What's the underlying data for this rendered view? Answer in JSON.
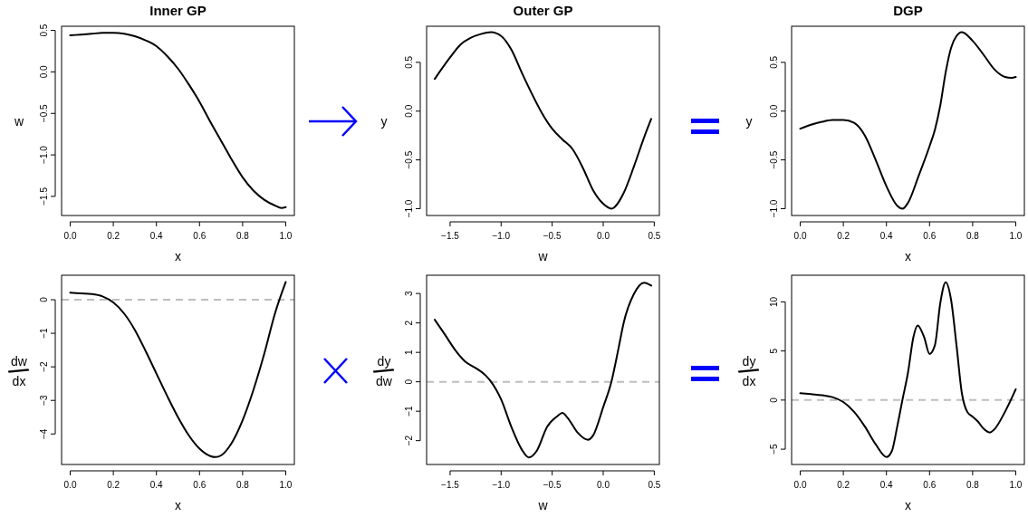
{
  "chart_data": [
    {
      "type": "line",
      "title": "Inner GP",
      "xlabel": "x",
      "ylabel": "w",
      "xlim": [
        -0.04,
        1.04
      ],
      "ylim": [
        -1.73,
        0.55
      ],
      "xticks": [
        {
          "value": 0,
          "label": "0.0"
        },
        0.2,
        0.4,
        0.6,
        0.8,
        {
          "value": 1,
          "label": "1.0"
        }
      ],
      "yticks": [
        {
          "value": -1.5,
          "label": "−1.5"
        },
        {
          "value": -1,
          "label": "−1.0"
        },
        {
          "value": -0.5,
          "label": "−0.5"
        },
        {
          "value": 0,
          "label": "0.0"
        },
        0.5
      ],
      "x": [
        0,
        0.05,
        0.1,
        0.15,
        0.2,
        0.25,
        0.3,
        0.35,
        0.4,
        0.45,
        0.5,
        0.55,
        0.6,
        0.65,
        0.7,
        0.75,
        0.8,
        0.85,
        0.9,
        0.95,
        0.98,
        1.0
      ],
      "series": [
        {
          "color": "#000000",
          "values": [
            0.44,
            0.45,
            0.46,
            0.47,
            0.47,
            0.46,
            0.43,
            0.38,
            0.31,
            0.19,
            0.04,
            -0.15,
            -0.36,
            -0.6,
            -0.83,
            -1.06,
            -1.27,
            -1.43,
            -1.54,
            -1.61,
            -1.64,
            -1.63
          ]
        }
      ]
    },
    {
      "type": "line",
      "title": "Outer GP",
      "xlabel": "w",
      "ylabel": "y",
      "xlim": [
        -1.73,
        0.55
      ],
      "ylim": [
        -1.07,
        0.87
      ],
      "xticks": [
        {
          "value": -1.5,
          "label": "−1.5"
        },
        {
          "value": -1,
          "label": "−1.0"
        },
        {
          "value": -0.5,
          "label": "−0.5"
        },
        {
          "value": 0,
          "label": "0.0"
        },
        0.5
      ],
      "yticks": [
        {
          "value": -1,
          "label": "−1.0"
        },
        {
          "value": -0.5,
          "label": "−0.5"
        },
        {
          "value": 0,
          "label": "0.0"
        },
        0.5
      ],
      "x": [
        -1.65,
        -1.5,
        -1.4,
        -1.3,
        -1.2,
        -1.1,
        -1.0,
        -0.9,
        -0.8,
        -0.7,
        -0.6,
        -0.5,
        -0.4,
        -0.3,
        -0.2,
        -0.1,
        0.0,
        0.08,
        0.2,
        0.3,
        0.4,
        0.47
      ],
      "series": [
        {
          "color": "#000000",
          "values": [
            0.33,
            0.55,
            0.68,
            0.75,
            0.79,
            0.81,
            0.77,
            0.63,
            0.4,
            0.18,
            -0.02,
            -0.18,
            -0.29,
            -0.39,
            -0.58,
            -0.81,
            -0.95,
            -1.0,
            -0.84,
            -0.57,
            -0.27,
            -0.08
          ]
        }
      ]
    },
    {
      "type": "line",
      "title": "DGP",
      "xlabel": "x",
      "ylabel": "y",
      "xlim": [
        -0.04,
        1.04
      ],
      "ylim": [
        -1.07,
        0.87
      ],
      "xticks": [
        {
          "value": 0,
          "label": "0.0"
        },
        0.2,
        0.4,
        0.6,
        0.8,
        {
          "value": 1,
          "label": "1.0"
        }
      ],
      "yticks": [
        {
          "value": -1,
          "label": "−1.0"
        },
        {
          "value": -0.5,
          "label": "−0.5"
        },
        {
          "value": 0,
          "label": "0.0"
        },
        0.5
      ],
      "x": [
        0,
        0.05,
        0.1,
        0.15,
        0.2,
        0.25,
        0.3,
        0.35,
        0.4,
        0.45,
        0.475,
        0.5,
        0.55,
        0.6,
        0.625,
        0.65,
        0.675,
        0.7,
        0.725,
        0.75,
        0.8,
        0.85,
        0.9,
        0.95,
        0.98,
        1.0
      ],
      "series": [
        {
          "color": "#000000",
          "values": [
            -0.18,
            -0.14,
            -0.11,
            -0.09,
            -0.09,
            -0.12,
            -0.25,
            -0.5,
            -0.77,
            -0.97,
            -1.0,
            -0.94,
            -0.66,
            -0.36,
            -0.19,
            0.06,
            0.4,
            0.65,
            0.77,
            0.81,
            0.72,
            0.58,
            0.43,
            0.35,
            0.34,
            0.35
          ]
        }
      ]
    },
    {
      "type": "line",
      "xlabel": "x",
      "ylabel": "dw/dx",
      "xlim": [
        -0.04,
        1.04
      ],
      "ylim": [
        -4.91,
        0.73
      ],
      "xticks": [
        {
          "value": 0,
          "label": "0.0"
        },
        0.2,
        0.4,
        0.6,
        0.8,
        {
          "value": 1,
          "label": "1.0"
        }
      ],
      "yticks": [
        {
          "value": -4,
          "label": "−4"
        },
        {
          "value": -3,
          "label": "−3"
        },
        {
          "value": -2,
          "label": "−2"
        },
        {
          "value": -1,
          "label": "−1"
        },
        0
      ],
      "ref_lines": [
        {
          "axis": "y",
          "value": 0,
          "color": "#bebebe",
          "line_style": "dashed"
        }
      ],
      "x": [
        0,
        0.05,
        0.1,
        0.15,
        0.2,
        0.25,
        0.3,
        0.35,
        0.4,
        0.45,
        0.5,
        0.55,
        0.6,
        0.65,
        0.675,
        0.7,
        0.75,
        0.8,
        0.85,
        0.9,
        0.95,
        1.0
      ],
      "series": [
        {
          "color": "#000000",
          "values": [
            0.21,
            0.19,
            0.17,
            0.1,
            -0.08,
            -0.41,
            -0.9,
            -1.53,
            -2.2,
            -2.87,
            -3.5,
            -4.04,
            -4.44,
            -4.66,
            -4.69,
            -4.64,
            -4.26,
            -3.59,
            -2.69,
            -1.62,
            -0.41,
            0.53
          ]
        }
      ]
    },
    {
      "type": "line",
      "xlabel": "w",
      "ylabel": "dy/dw",
      "xlim": [
        -1.73,
        0.55
      ],
      "ylim": [
        -2.81,
        3.62
      ],
      "xticks": [
        {
          "value": -1.5,
          "label": "−1.5"
        },
        {
          "value": -1,
          "label": "−1.0"
        },
        {
          "value": -0.5,
          "label": "−0.5"
        },
        {
          "value": 0,
          "label": "0.0"
        },
        0.5
      ],
      "yticks": [
        {
          "value": -2,
          "label": "−2"
        },
        {
          "value": -1,
          "label": "−1"
        },
        0,
        1,
        2,
        3
      ],
      "ref_lines": [
        {
          "axis": "y",
          "value": 0,
          "color": "#bebebe",
          "line_style": "dashed"
        }
      ],
      "x": [
        -1.65,
        -1.55,
        -1.45,
        -1.35,
        -1.25,
        -1.15,
        -1.1,
        -1.0,
        -0.9,
        -0.8,
        -0.73,
        -0.65,
        -0.55,
        -0.45,
        -0.4,
        -0.35,
        -0.25,
        -0.15,
        -0.1,
        0.0,
        0.08,
        0.15,
        0.2,
        0.3,
        0.4,
        0.47
      ],
      "series": [
        {
          "color": "#000000",
          "values": [
            2.11,
            1.6,
            1.08,
            0.68,
            0.47,
            0.21,
            0.01,
            -0.6,
            -1.53,
            -2.29,
            -2.57,
            -2.34,
            -1.53,
            -1.17,
            -1.06,
            -1.22,
            -1.73,
            -1.97,
            -1.83,
            -0.86,
            0.0,
            1.14,
            2.0,
            2.98,
            3.37,
            3.27
          ]
        }
      ]
    },
    {
      "type": "line",
      "xlabel": "x",
      "ylabel": "dy/dx",
      "xlim": [
        -0.04,
        1.04
      ],
      "ylim": [
        -6.56,
        12.71
      ],
      "xticks": [
        {
          "value": 0,
          "label": "0.0"
        },
        0.2,
        0.4,
        0.6,
        0.8,
        {
          "value": 1,
          "label": "1.0"
        }
      ],
      "yticks": [
        {
          "value": -5,
          "label": "−5"
        },
        0,
        5,
        10
      ],
      "ref_lines": [
        {
          "axis": "y",
          "value": 0,
          "color": "#bebebe",
          "line_style": "dashed"
        }
      ],
      "x": [
        0,
        0.05,
        0.1,
        0.15,
        0.2,
        0.25,
        0.3,
        0.35,
        0.4,
        0.425,
        0.45,
        0.475,
        0.5,
        0.525,
        0.545,
        0.575,
        0.6,
        0.625,
        0.65,
        0.675,
        0.7,
        0.725,
        0.75,
        0.775,
        0.8,
        0.825,
        0.85,
        0.88,
        0.9,
        0.95,
        1.0
      ],
      "series": [
        {
          "color": "#000000",
          "values": [
            0.7,
            0.6,
            0.5,
            0.3,
            -0.2,
            -1.2,
            -2.7,
            -4.5,
            -5.8,
            -5.2,
            -2.7,
            0.1,
            2.8,
            6.4,
            7.6,
            6.4,
            4.7,
            5.6,
            9.9,
            12.0,
            10.2,
            5.6,
            0.7,
            -1.2,
            -1.7,
            -2.2,
            -2.9,
            -3.3,
            -3.0,
            -1.2,
            1.1
          ]
        }
      ]
    }
  ]
}
